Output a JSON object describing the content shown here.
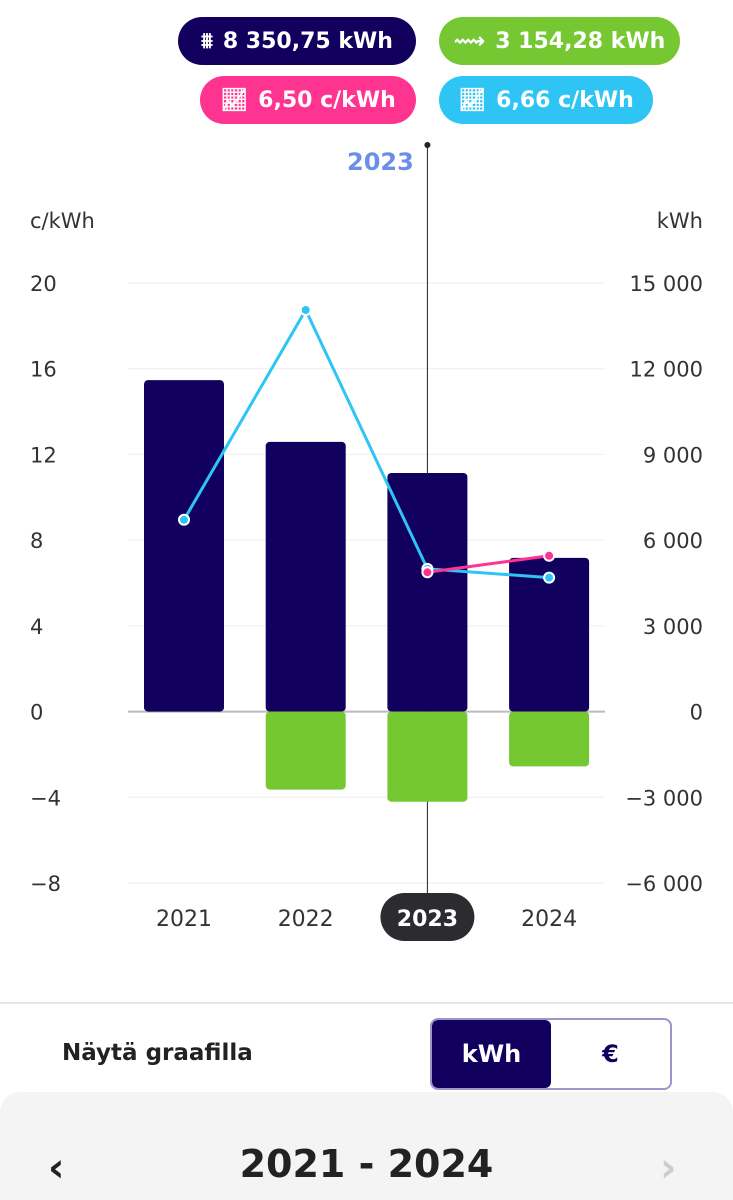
{
  "pills": [
    {
      "text": "8 350,75 kWh",
      "icon": "power-tower-icon",
      "color": "#12005e"
    },
    {
      "text": "3 154,28 kWh",
      "icon": "solar-wave-icon",
      "color": "#76c832"
    },
    {
      "text": "6,50 c/kWh",
      "icon": "chart-line-icon",
      "color": "#ff3390"
    },
    {
      "text": "6,66 c/kWh",
      "icon": "chart-line-icon",
      "color": "#2ec5f5"
    }
  ],
  "chart_data": {
    "type": "bar+line",
    "selected": "2023",
    "categories": [
      "2021",
      "2022",
      "2023",
      "2024"
    ],
    "left_axis": {
      "label": "c/kWh",
      "ticks": [
        "20",
        "16",
        "12",
        "8",
        "4",
        "0",
        "−4",
        "−8"
      ],
      "range": [
        -8,
        20
      ]
    },
    "right_axis": {
      "label": "kWh",
      "ticks": [
        "15 000",
        "12 000",
        "9 000",
        "6 000",
        "3 000",
        "0",
        "−3 000",
        "−6 000"
      ],
      "range": [
        -6000,
        15000
      ]
    },
    "series": [
      {
        "name": "consumption kWh",
        "type": "bar",
        "axis": "right",
        "color": "#12005e",
        "values": [
          11600,
          9440,
          8350.75,
          5380
        ]
      },
      {
        "name": "production kWh",
        "type": "bar",
        "axis": "right",
        "color": "#76c832",
        "values": [
          0,
          -2730,
          -3154.28,
          -1920
        ]
      },
      {
        "name": "price c/kWh",
        "type": "line",
        "axis": "left",
        "color": "#2ec5f5",
        "values": [
          8.95,
          18.74,
          6.66,
          6.25
        ]
      },
      {
        "name": "price 2 c/kWh",
        "type": "line",
        "axis": "left",
        "color": "#ff3390",
        "values": [
          null,
          null,
          6.5,
          7.27
        ]
      }
    ]
  },
  "controls": {
    "show_label": "Näytä graafilla",
    "options": [
      "kWh",
      "€"
    ],
    "selected": "kWh"
  },
  "nav": {
    "range": "2021 - 2024",
    "prev": "‹",
    "next": "›"
  }
}
